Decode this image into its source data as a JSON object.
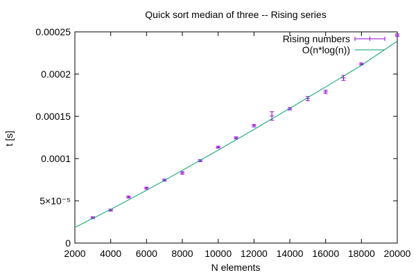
{
  "chart_data": {
    "type": "scatter",
    "title": "Quick sort median of three -- Rising series",
    "xlabel": "N elements",
    "ylabel": "t [s]",
    "xlim": [
      2000,
      20000
    ],
    "ylim": [
      0,
      0.00025
    ],
    "x_ticks": [
      2000,
      4000,
      6000,
      8000,
      10000,
      12000,
      14000,
      16000,
      18000,
      20000
    ],
    "x_tick_labels": [
      "2000",
      "4000",
      "6000",
      "8000",
      "10000",
      "12000",
      "14000",
      "16000",
      "18000",
      "20000"
    ],
    "y_ticks": [
      0,
      5e-05,
      0.0001,
      0.00015,
      0.0002,
      0.00025
    ],
    "y_tick_labels": [
      "0",
      "5×10⁻⁵",
      "0.0001",
      "0.00015",
      "0.0002",
      "0.00025"
    ],
    "grid": false,
    "legend_position": "top-right",
    "series": [
      {
        "name": "Rising numbers",
        "kind": "errorbars",
        "color": "#9400d3",
        "points": [
          {
            "x": 3000,
            "y": 3e-05,
            "err": 1.2e-06
          },
          {
            "x": 4000,
            "y": 3.9e-05,
            "err": 1.2e-06
          },
          {
            "x": 5000,
            "y": 5.45e-05,
            "err": 1.2e-06
          },
          {
            "x": 6000,
            "y": 6.5e-05,
            "err": 1.2e-06
          },
          {
            "x": 7000,
            "y": 7.45e-05,
            "err": 1.2e-06
          },
          {
            "x": 8000,
            "y": 8.3e-05,
            "err": 1.5e-06
          },
          {
            "x": 9000,
            "y": 9.75e-05,
            "err": 1.2e-06
          },
          {
            "x": 10000,
            "y": 0.0001135,
            "err": 1.2e-06
          },
          {
            "x": 11000,
            "y": 0.0001245,
            "err": 1.2e-06
          },
          {
            "x": 12000,
            "y": 0.000139,
            "err": 1.5e-06
          },
          {
            "x": 13000,
            "y": 0.0001505,
            "err": 5e-06
          },
          {
            "x": 14000,
            "y": 0.000159,
            "err": 1.5e-06
          },
          {
            "x": 15000,
            "y": 0.000171,
            "err": 2.5e-06
          },
          {
            "x": 16000,
            "y": 0.000179,
            "err": 2e-06
          },
          {
            "x": 17000,
            "y": 0.0001955,
            "err": 3e-06
          },
          {
            "x": 18000,
            "y": 0.000212,
            "err": 1.2e-06
          },
          {
            "x": 20000,
            "y": 0.000246,
            "err": 1.5e-06
          }
        ]
      },
      {
        "name": "O(n*log(n))",
        "kind": "line",
        "color": "#009e73",
        "x": [
          2000,
          4000,
          6000,
          8000,
          10000,
          12000,
          14000,
          16000,
          18000,
          20000
        ],
        "y": [
          1.85e-05,
          3.98e-05,
          6.25e-05,
          8.6e-05,
          0.00011,
          0.0001345,
          0.0001595,
          0.0001848,
          0.0002104,
          0.000239
        ]
      }
    ]
  }
}
